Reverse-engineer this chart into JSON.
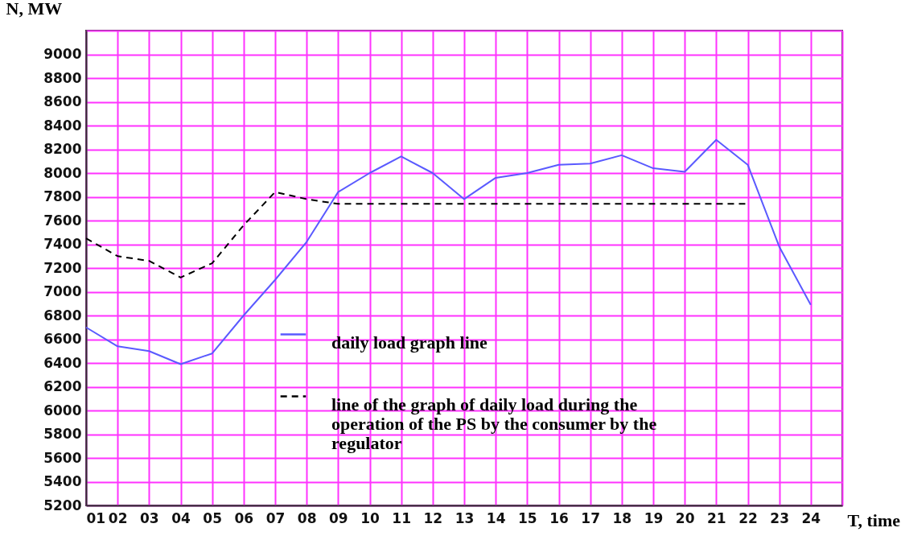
{
  "chart_data": {
    "type": "line",
    "xlabel": "T, time",
    "ylabel": "N, MW",
    "x": [
      1,
      2,
      3,
      4,
      5,
      6,
      7,
      8,
      9,
      10,
      11,
      12,
      13,
      14,
      15,
      16,
      17,
      18,
      19,
      20,
      21,
      22,
      23,
      24
    ],
    "xlim": [
      1,
      25
    ],
    "xticks": [
      {
        "value": 1,
        "label": "01"
      },
      {
        "value": 2,
        "label": "02"
      },
      {
        "value": 3,
        "label": "03"
      },
      {
        "value": 4,
        "label": "04"
      },
      {
        "value": 5,
        "label": "05"
      },
      {
        "value": 6,
        "label": "06"
      },
      {
        "value": 7,
        "label": "07"
      },
      {
        "value": 8,
        "label": "08"
      },
      {
        "value": 9,
        "label": "09"
      },
      {
        "value": 10,
        "label": "10"
      },
      {
        "value": 11,
        "label": "11"
      },
      {
        "value": 12,
        "label": "12"
      },
      {
        "value": 13,
        "label": "13"
      },
      {
        "value": 14,
        "label": "14"
      },
      {
        "value": 15,
        "label": "15"
      },
      {
        "value": 16,
        "label": "16"
      },
      {
        "value": 17,
        "label": "17"
      },
      {
        "value": 18,
        "label": "18"
      },
      {
        "value": 19,
        "label": "19"
      },
      {
        "value": 20,
        "label": "20"
      },
      {
        "value": 21,
        "label": "21"
      },
      {
        "value": 22,
        "label": "22"
      },
      {
        "value": 23,
        "label": "23"
      },
      {
        "value": 24,
        "label": "24"
      },
      {
        "value": 25,
        "label": null
      }
    ],
    "ylim": [
      5200,
      9200
    ],
    "yticks": [
      5200,
      5400,
      5600,
      5800,
      6000,
      6200,
      6400,
      6600,
      6800,
      7000,
      7200,
      7400,
      7600,
      7800,
      8000,
      8200,
      8400,
      8600,
      8800,
      9000,
      {
        "value": 9200,
        "label": null
      }
    ],
    "grid": true,
    "legend": "bottom",
    "marker": "none",
    "series": [
      {
        "name": "daily load graph line",
        "color": "#5a5aff",
        "line_style": "solid",
        "values": [
          6700,
          6540,
          6500,
          6390,
          6480,
          6800,
          7100,
          7420,
          7840,
          8000,
          8140,
          8000,
          7780,
          7960,
          8000,
          8070,
          8080,
          8150,
          8040,
          8010,
          8280,
          8070,
          7380,
          6890
        ]
      },
      {
        "name": "line of the graph of daily load during the operation of the PS by the consumer by the regulator",
        "color": "#000000",
        "line_style": "dashed",
        "values": [
          7450,
          7300,
          7260,
          7120,
          7240,
          7560,
          7840,
          7780,
          7740,
          7740,
          7740,
          7740,
          7740,
          7740,
          7740,
          7740,
          7740,
          7740,
          7740,
          7740,
          7740,
          7740,
          null,
          null
        ]
      }
    ]
  }
}
